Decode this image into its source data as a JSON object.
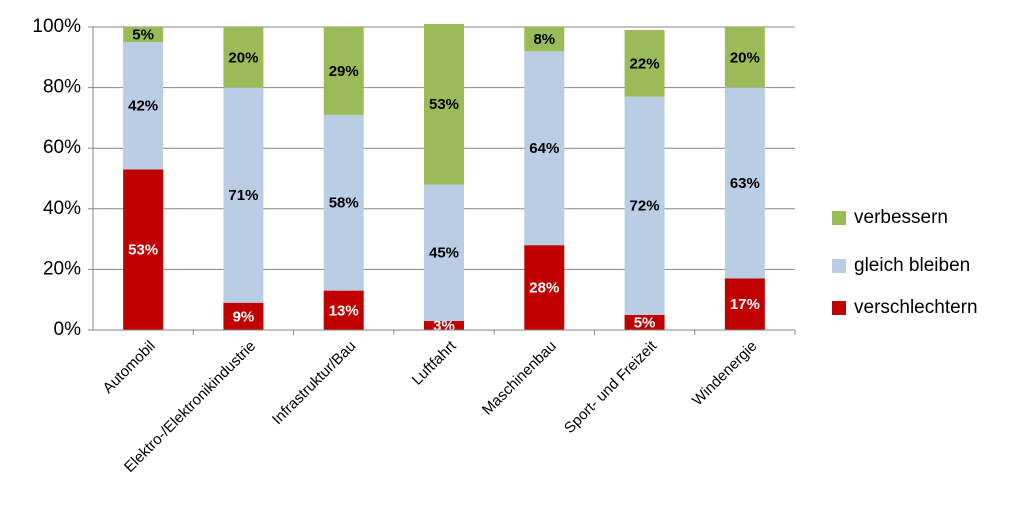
{
  "chart_data": {
    "type": "stacked_bar",
    "categories": [
      "Automobil",
      "Elektro-/Elektronikindustrie",
      "Infrastruktur/Bau",
      "Luftfahrt",
      "Maschinenbau",
      "Sport- und Freizeit",
      "Windenergie"
    ],
    "series": [
      {
        "name": "verschlechtern",
        "color": "#c00000",
        "values": [
          53,
          9,
          13,
          3,
          28,
          5,
          17
        ],
        "value_labels": [
          "53%",
          "9%",
          "13%",
          "3%",
          "28%",
          "5%",
          "17%"
        ]
      },
      {
        "name": "gleich bleiben",
        "color": "#b9cde5",
        "values": [
          42,
          71,
          58,
          45,
          64,
          72,
          63
        ],
        "value_labels": [
          "42%",
          "71%",
          "58%",
          "45%",
          "64%",
          "72%",
          "63%"
        ]
      },
      {
        "name": "verbessern",
        "color": "#9bbb59",
        "values": [
          5,
          20,
          29,
          53,
          8,
          22,
          20
        ],
        "value_labels": [
          "5%",
          "20%",
          "29%",
          "53%",
          "8%",
          "22%",
          "20%"
        ]
      }
    ],
    "ylim": [
      0,
      100
    ],
    "yticks": [
      {
        "value": 0,
        "label": "0%"
      },
      {
        "value": 20,
        "label": "20%"
      },
      {
        "value": 40,
        "label": "40%"
      },
      {
        "value": 60,
        "label": "60%"
      },
      {
        "value": 80,
        "label": "80%"
      },
      {
        "value": 100,
        "label": "100%"
      }
    ],
    "grid": true,
    "legend": "right"
  }
}
